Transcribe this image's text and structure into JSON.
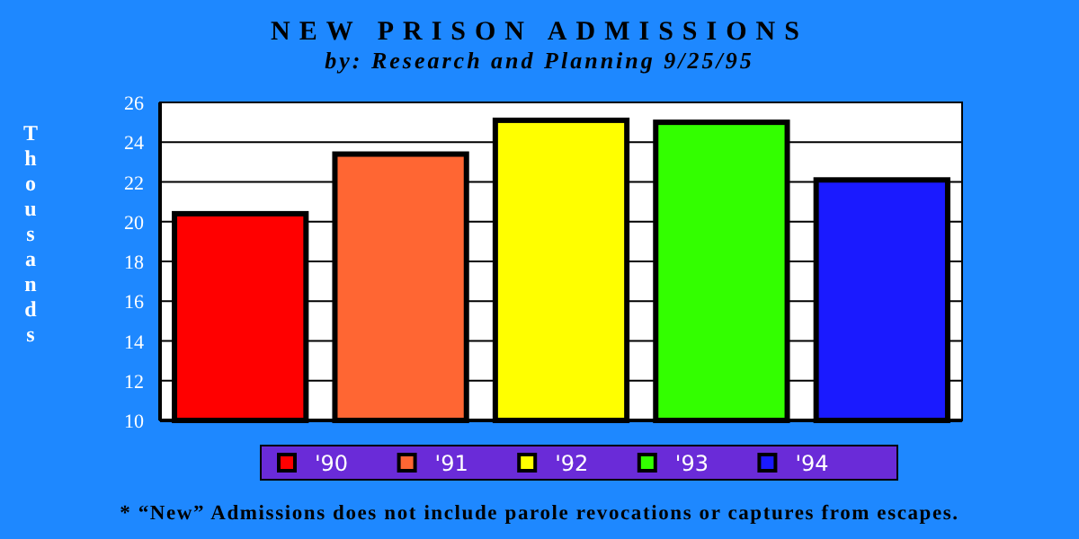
{
  "chart_data": {
    "type": "bar",
    "title": "NEW PRISON ADMISSIONS",
    "subtitle": "by:  Research and Planning 9/25/95",
    "ylabel": "Thousands",
    "categories": [
      null
    ],
    "series": [
      {
        "name": "'90",
        "color": "#ff0000",
        "values": [
          20.4
        ]
      },
      {
        "name": "'91",
        "color": "#ff6633",
        "values": [
          23.4
        ]
      },
      {
        "name": "'92",
        "color": "#ffff00",
        "values": [
          25.1
        ]
      },
      {
        "name": "'93",
        "color": "#33ff00",
        "values": [
          25.0
        ]
      },
      {
        "name": "'94",
        "color": "#1a1aff",
        "values": [
          22.1
        ]
      }
    ],
    "ylim": [
      10,
      26
    ],
    "yticks": [
      10,
      12,
      14,
      16,
      18,
      20,
      22,
      24,
      26
    ],
    "grid": "y",
    "legend": "bottom",
    "annotations": [
      "* “New” Admissions does not include parole revocations or captures from escapes."
    ]
  }
}
